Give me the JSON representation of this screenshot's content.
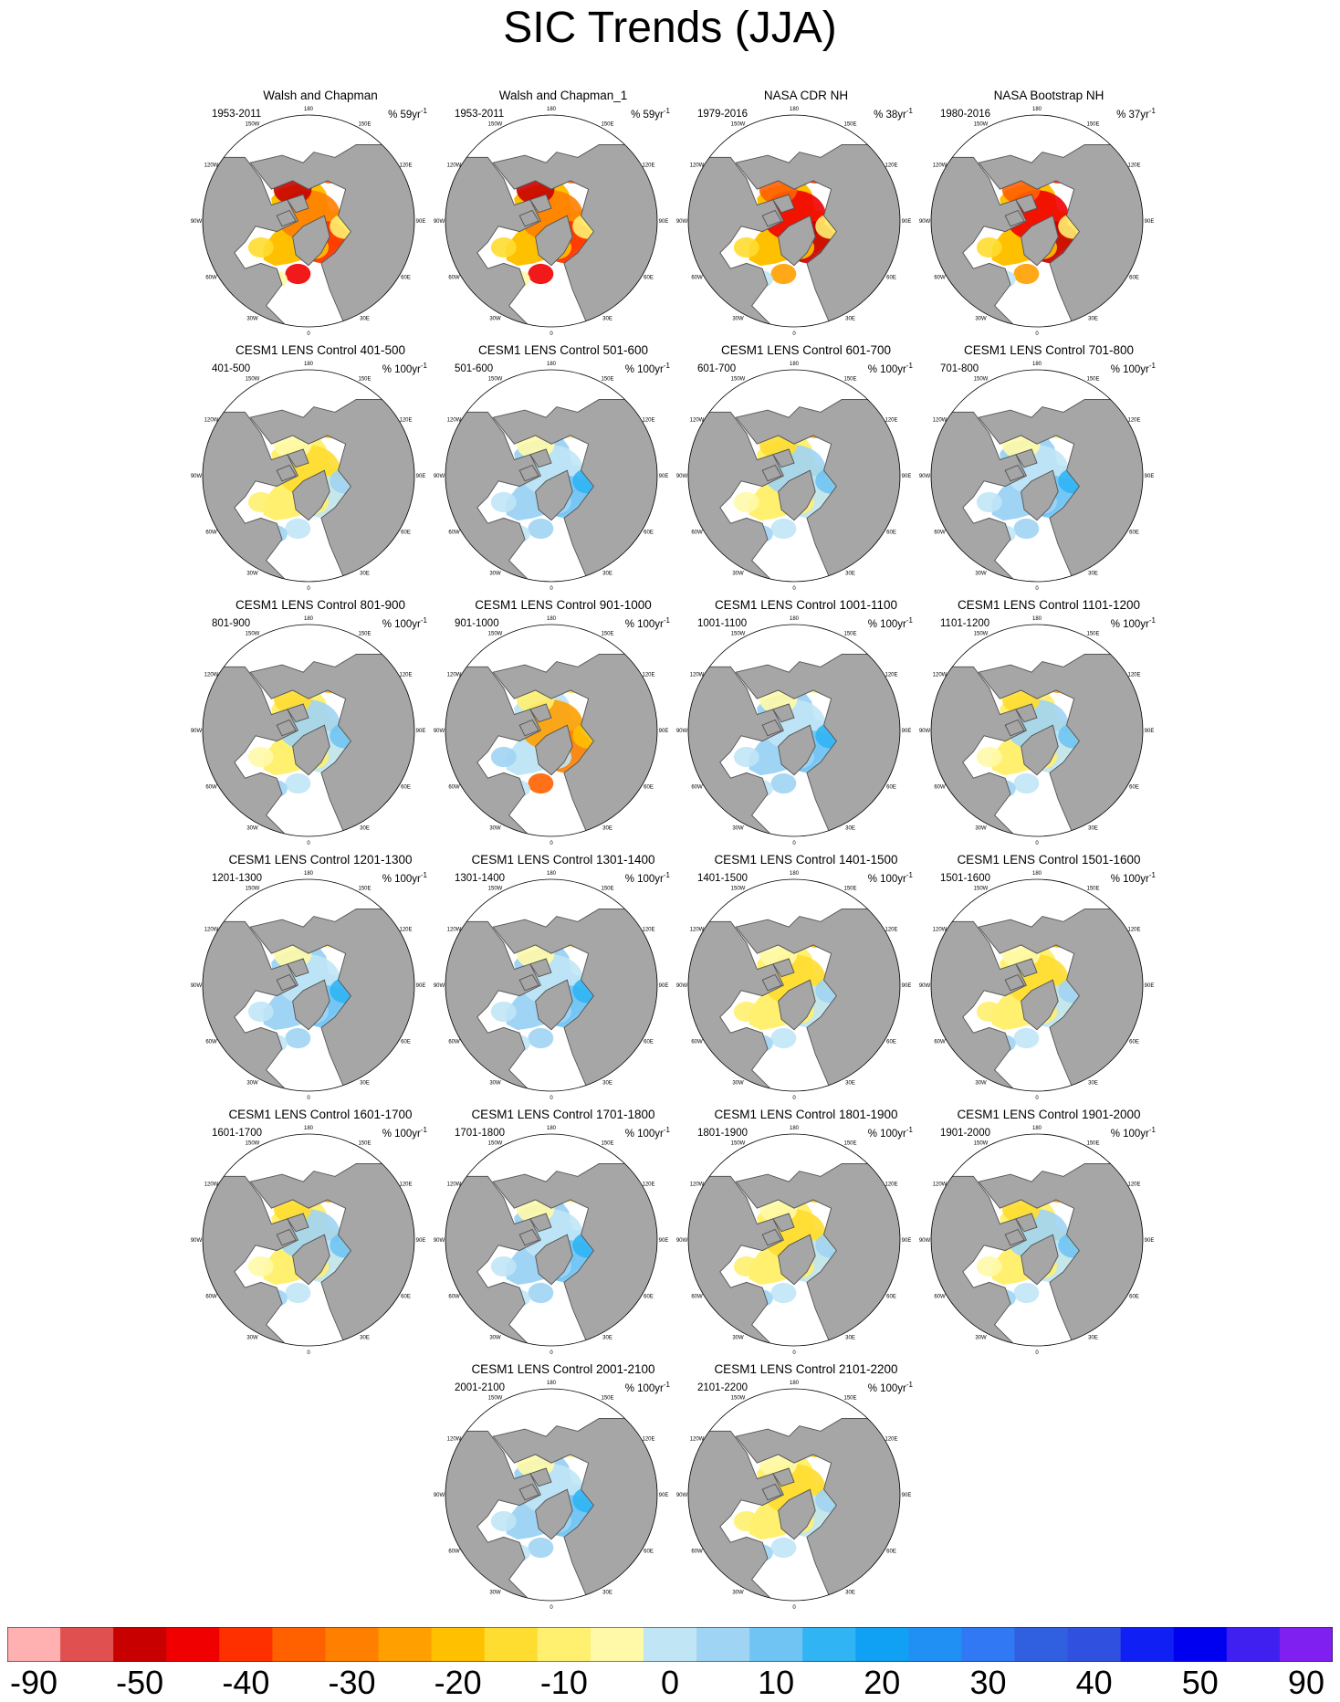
{
  "chart_data": {
    "type": "heatmap",
    "title": "SIC Trends (JJA)",
    "projection": "north-polar-stereographic",
    "map_labels": {
      "longitudes": [
        "180",
        "150E",
        "120E",
        "90E",
        "60E",
        "30E",
        "0",
        "30W",
        "60W",
        "90W",
        "120W",
        "150W"
      ]
    },
    "panels": [
      {
        "title": "Walsh and Chapman",
        "period": "1953-2011",
        "unit_prefix": "% 59yr",
        "unit_exp": "-1",
        "style": "obs"
      },
      {
        "title": "Walsh and Chapman_1",
        "period": "1953-2011",
        "unit_prefix": "% 59yr",
        "unit_exp": "-1",
        "style": "obs"
      },
      {
        "title": "NASA CDR NH",
        "period": "1979-2016",
        "unit_prefix": "% 38yr",
        "unit_exp": "-1",
        "style": "sat"
      },
      {
        "title": "NASA Bootstrap NH",
        "period": "1980-2016",
        "unit_prefix": "% 37yr",
        "unit_exp": "-1",
        "style": "sat"
      },
      {
        "title": "CESM1 LENS Control 401-500",
        "period": "401-500",
        "unit_prefix": "% 100yr",
        "unit_exp": "-1",
        "style": "yellow"
      },
      {
        "title": "CESM1 LENS Control 501-600",
        "period": "501-600",
        "unit_prefix": "% 100yr",
        "unit_exp": "-1",
        "style": "blue"
      },
      {
        "title": "CESM1 LENS Control 601-700",
        "period": "601-700",
        "unit_prefix": "% 100yr",
        "unit_exp": "-1",
        "style": "mixed"
      },
      {
        "title": "CESM1 LENS Control 701-800",
        "period": "701-800",
        "unit_prefix": "% 100yr",
        "unit_exp": "-1",
        "style": "blue"
      },
      {
        "title": "CESM1 LENS Control 801-900",
        "period": "801-900",
        "unit_prefix": "% 100yr",
        "unit_exp": "-1",
        "style": "mixed"
      },
      {
        "title": "CESM1 LENS Control 901-1000",
        "period": "901-1000",
        "unit_prefix": "% 100yr",
        "unit_exp": "-1",
        "style": "orange"
      },
      {
        "title": "CESM1 LENS Control 1001-1100",
        "period": "1001-1100",
        "unit_prefix": "% 100yr",
        "unit_exp": "-1",
        "style": "blue"
      },
      {
        "title": "CESM1 LENS Control 1101-1200",
        "period": "1101-1200",
        "unit_prefix": "% 100yr",
        "unit_exp": "-1",
        "style": "mixed"
      },
      {
        "title": "CESM1 LENS Control 1201-1300",
        "period": "1201-1300",
        "unit_prefix": "% 100yr",
        "unit_exp": "-1",
        "style": "blue"
      },
      {
        "title": "CESM1 LENS Control 1301-1400",
        "period": "1301-1400",
        "unit_prefix": "% 100yr",
        "unit_exp": "-1",
        "style": "blue"
      },
      {
        "title": "CESM1 LENS Control 1401-1500",
        "period": "1401-1500",
        "unit_prefix": "% 100yr",
        "unit_exp": "-1",
        "style": "yellow"
      },
      {
        "title": "CESM1 LENS Control 1501-1600",
        "period": "1501-1600",
        "unit_prefix": "% 100yr",
        "unit_exp": "-1",
        "style": "yellow"
      },
      {
        "title": "CESM1 LENS Control 1601-1700",
        "period": "1601-1700",
        "unit_prefix": "% 100yr",
        "unit_exp": "-1",
        "style": "mixed"
      },
      {
        "title": "CESM1 LENS Control 1701-1800",
        "period": "1701-1800",
        "unit_prefix": "% 100yr",
        "unit_exp": "-1",
        "style": "blue"
      },
      {
        "title": "CESM1 LENS Control 1801-1900",
        "period": "1801-1900",
        "unit_prefix": "% 100yr",
        "unit_exp": "-1",
        "style": "yellow"
      },
      {
        "title": "CESM1 LENS Control 1901-2000",
        "period": "1901-2000",
        "unit_prefix": "% 100yr",
        "unit_exp": "-1",
        "style": "mixed"
      },
      {
        "title": "CESM1 LENS Control 2001-2100",
        "period": "2001-2100",
        "unit_prefix": "% 100yr",
        "unit_exp": "-1",
        "style": "blue"
      },
      {
        "title": "CESM1 LENS Control 2101-2200",
        "period": "2101-2200",
        "unit_prefix": "% 100yr",
        "unit_exp": "-1",
        "style": "yellow"
      }
    ],
    "colorbar": {
      "colors": [
        "#ffb0b0",
        "#e05050",
        "#c80000",
        "#f00000",
        "#ff3000",
        "#ff6000",
        "#ff8000",
        "#ffa000",
        "#ffc000",
        "#ffdd30",
        "#fff070",
        "#fff9a8",
        "#c0e6f6",
        "#a0d4f4",
        "#70c4f4",
        "#30b4f4",
        "#10a0f4",
        "#2090f4",
        "#3078f4",
        "#3060e0",
        "#3050e0",
        "#1020f4",
        "#0000f0",
        "#4020f0",
        "#8020f0"
      ],
      "tick_labels": [
        "-90",
        "-50",
        "-40",
        "-30",
        "-20",
        "-10",
        "0",
        "10",
        "20",
        "30",
        "40",
        "50",
        "90"
      ]
    }
  }
}
